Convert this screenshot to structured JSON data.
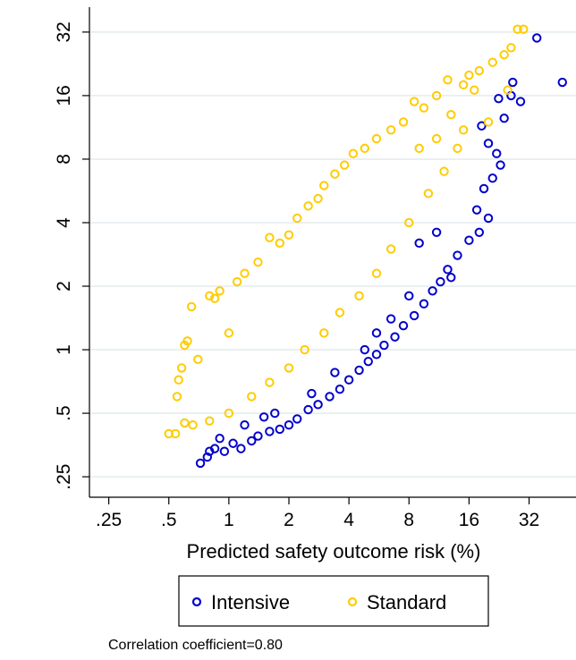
{
  "chart_data": {
    "type": "scatter",
    "title": "",
    "xlabel": "Predicted safety outcome risk (%)",
    "ylabel": "",
    "x_scale": "log2",
    "y_scale": "log2",
    "xlim": [
      0.2,
      55
    ],
    "ylim": [
      0.2,
      42
    ],
    "x_ticks": [
      0.25,
      0.5,
      1,
      2,
      4,
      8,
      16,
      32
    ],
    "x_tick_labels": [
      ".25",
      ".5",
      "1",
      "2",
      "4",
      "8",
      "16",
      "32"
    ],
    "y_ticks": [
      0.25,
      0.5,
      1,
      2,
      4,
      8,
      16,
      32
    ],
    "y_tick_labels": [
      ".25",
      ".5",
      "1",
      "2",
      "4",
      "8",
      "16",
      "32"
    ],
    "grid": "horizontal",
    "legend_position": "bottom",
    "note": "Correlation coefficient=0.80",
    "series": [
      {
        "name": "Intensive",
        "color": "#0000cc",
        "marker": "hollow-circle",
        "points": [
          [
            0.72,
            0.29
          ],
          [
            0.78,
            0.31
          ],
          [
            0.85,
            0.34
          ],
          [
            0.95,
            0.33
          ],
          [
            1.05,
            0.36
          ],
          [
            1.15,
            0.34
          ],
          [
            0.8,
            0.33
          ],
          [
            0.9,
            0.38
          ],
          [
            1.3,
            0.37
          ],
          [
            1.4,
            0.39
          ],
          [
            1.6,
            0.41
          ],
          [
            1.8,
            0.42
          ],
          [
            2.0,
            0.44
          ],
          [
            2.2,
            0.47
          ],
          [
            2.5,
            0.52
          ],
          [
            2.8,
            0.55
          ],
          [
            3.2,
            0.6
          ],
          [
            3.6,
            0.65
          ],
          [
            4.0,
            0.72
          ],
          [
            4.5,
            0.8
          ],
          [
            5.0,
            0.88
          ],
          [
            5.5,
            0.95
          ],
          [
            6.0,
            1.05
          ],
          [
            6.8,
            1.15
          ],
          [
            7.5,
            1.3
          ],
          [
            8.5,
            1.45
          ],
          [
            9.5,
            1.65
          ],
          [
            10.5,
            1.9
          ],
          [
            11.5,
            2.1
          ],
          [
            12.5,
            2.4
          ],
          [
            14.0,
            2.8
          ],
          [
            16.0,
            3.3
          ],
          [
            18.0,
            3.6
          ],
          [
            20.0,
            4.2
          ],
          [
            17.5,
            4.6
          ],
          [
            19.0,
            5.8
          ],
          [
            21.0,
            6.5
          ],
          [
            23.0,
            7.5
          ],
          [
            22.0,
            8.5
          ],
          [
            20.0,
            9.5
          ],
          [
            18.5,
            11.5
          ],
          [
            24.0,
            12.5
          ],
          [
            22.5,
            15.5
          ],
          [
            26.0,
            16.0
          ],
          [
            26.5,
            18.5
          ],
          [
            35.0,
            30.0
          ],
          [
            47.0,
            18.5
          ],
          [
            29.0,
            15.0
          ],
          [
            11.0,
            3.6
          ],
          [
            9.0,
            3.2
          ],
          [
            13.0,
            2.2
          ],
          [
            8.0,
            1.8
          ],
          [
            6.5,
            1.4
          ],
          [
            5.5,
            1.2
          ],
          [
            4.8,
            1.0
          ],
          [
            3.4,
            0.78
          ],
          [
            2.6,
            0.62
          ],
          [
            1.7,
            0.5
          ],
          [
            1.2,
            0.44
          ],
          [
            1.5,
            0.48
          ]
        ]
      },
      {
        "name": "Standard",
        "color": "#ffcc00",
        "marker": "hollow-circle",
        "points": [
          [
            0.5,
            0.4
          ],
          [
            0.54,
            0.4
          ],
          [
            0.55,
            0.6
          ],
          [
            0.56,
            0.72
          ],
          [
            0.58,
            0.82
          ],
          [
            0.6,
            1.05
          ],
          [
            0.62,
            1.1
          ],
          [
            0.65,
            1.6
          ],
          [
            0.7,
            0.9
          ],
          [
            0.8,
            1.8
          ],
          [
            0.85,
            1.75
          ],
          [
            0.9,
            1.9
          ],
          [
            1.0,
            1.2
          ],
          [
            1.1,
            2.1
          ],
          [
            1.2,
            2.3
          ],
          [
            1.4,
            2.6
          ],
          [
            1.6,
            3.4
          ],
          [
            1.8,
            3.2
          ],
          [
            2.0,
            3.5
          ],
          [
            2.2,
            4.2
          ],
          [
            2.5,
            4.8
          ],
          [
            2.8,
            5.2
          ],
          [
            3.0,
            6.0
          ],
          [
            3.4,
            6.8
          ],
          [
            3.8,
            7.5
          ],
          [
            4.2,
            8.5
          ],
          [
            4.8,
            9.0
          ],
          [
            5.5,
            10.0
          ],
          [
            6.5,
            11.0
          ],
          [
            7.5,
            12.0
          ],
          [
            8.5,
            15.0
          ],
          [
            9.5,
            14.0
          ],
          [
            11.0,
            16.0
          ],
          [
            12.5,
            19.0
          ],
          [
            15.0,
            18.0
          ],
          [
            16.0,
            20.0
          ],
          [
            18.0,
            21.0
          ],
          [
            21.0,
            23.0
          ],
          [
            24.0,
            25.0
          ],
          [
            26.0,
            27.0
          ],
          [
            28.0,
            33.0
          ],
          [
            30.0,
            33.0
          ],
          [
            15.0,
            11.0
          ],
          [
            14.0,
            9.0
          ],
          [
            12.0,
            7.0
          ],
          [
            10.0,
            5.5
          ],
          [
            8.0,
            4.0
          ],
          [
            6.5,
            3.0
          ],
          [
            5.5,
            2.3
          ],
          [
            4.5,
            1.8
          ],
          [
            3.6,
            1.5
          ],
          [
            3.0,
            1.2
          ],
          [
            2.4,
            1.0
          ],
          [
            2.0,
            0.82
          ],
          [
            1.6,
            0.7
          ],
          [
            1.3,
            0.6
          ],
          [
            1.0,
            0.5
          ],
          [
            0.8,
            0.46
          ],
          [
            0.66,
            0.44
          ],
          [
            0.6,
            0.45
          ],
          [
            17.0,
            17.0
          ],
          [
            25.0,
            17.0
          ],
          [
            13.0,
            13.0
          ],
          [
            20.0,
            12.0
          ],
          [
            9.0,
            9.0
          ],
          [
            11.0,
            10.0
          ]
        ]
      }
    ]
  }
}
